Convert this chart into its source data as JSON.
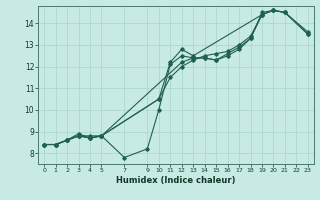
{
  "xlabel": "Humidex (Indice chaleur)",
  "ylabel": "",
  "bg_color": "#c8eae4",
  "line_color": "#206050",
  "grid_color": "#a8d4cc",
  "xlim": [
    -0.5,
    23.5
  ],
  "ylim": [
    7.5,
    14.8
  ],
  "xticks": [
    0,
    1,
    2,
    3,
    4,
    5,
    7,
    9,
    10,
    11,
    12,
    13,
    14,
    15,
    16,
    17,
    18,
    19,
    20,
    21,
    22,
    23
  ],
  "yticks": [
    8,
    9,
    10,
    11,
    12,
    13,
    14
  ],
  "series": [
    [
      [
        0,
        8.4
      ],
      [
        1,
        8.4
      ],
      [
        2,
        8.6
      ],
      [
        3,
        8.8
      ],
      [
        4,
        8.7
      ],
      [
        5,
        8.8
      ],
      [
        7,
        7.8
      ],
      [
        9,
        8.2
      ],
      [
        10,
        10.0
      ],
      [
        11,
        12.1
      ],
      [
        12,
        12.5
      ],
      [
        13,
        12.4
      ],
      [
        14,
        12.4
      ],
      [
        15,
        12.3
      ],
      [
        16,
        12.6
      ],
      [
        17,
        12.9
      ],
      [
        18,
        13.3
      ],
      [
        19,
        14.5
      ],
      [
        20,
        14.6
      ],
      [
        21,
        14.5
      ],
      [
        23,
        13.6
      ]
    ],
    [
      [
        0,
        8.4
      ],
      [
        1,
        8.4
      ],
      [
        2,
        8.6
      ],
      [
        3,
        8.9
      ],
      [
        4,
        8.7
      ],
      [
        5,
        8.8
      ],
      [
        10,
        10.5
      ],
      [
        11,
        12.2
      ],
      [
        12,
        12.8
      ],
      [
        13,
        12.5
      ],
      [
        19,
        14.4
      ]
    ],
    [
      [
        0,
        8.4
      ],
      [
        1,
        8.4
      ],
      [
        2,
        8.6
      ],
      [
        3,
        8.8
      ],
      [
        4,
        8.7
      ],
      [
        5,
        8.8
      ],
      [
        10,
        10.5
      ],
      [
        11,
        11.5
      ],
      [
        12,
        12.0
      ],
      [
        13,
        12.3
      ],
      [
        14,
        12.5
      ],
      [
        15,
        12.6
      ],
      [
        16,
        12.7
      ],
      [
        17,
        13.0
      ],
      [
        18,
        13.4
      ],
      [
        19,
        14.4
      ],
      [
        20,
        14.6
      ],
      [
        21,
        14.5
      ],
      [
        23,
        13.5
      ]
    ],
    [
      [
        0,
        8.4
      ],
      [
        1,
        8.4
      ],
      [
        2,
        8.6
      ],
      [
        3,
        8.8
      ],
      [
        4,
        8.8
      ],
      [
        5,
        8.8
      ],
      [
        12,
        12.2
      ],
      [
        13,
        12.4
      ],
      [
        14,
        12.4
      ],
      [
        15,
        12.3
      ],
      [
        16,
        12.5
      ],
      [
        17,
        12.8
      ],
      [
        18,
        13.3
      ],
      [
        19,
        14.4
      ],
      [
        20,
        14.6
      ],
      [
        21,
        14.5
      ],
      [
        23,
        13.5
      ]
    ]
  ]
}
